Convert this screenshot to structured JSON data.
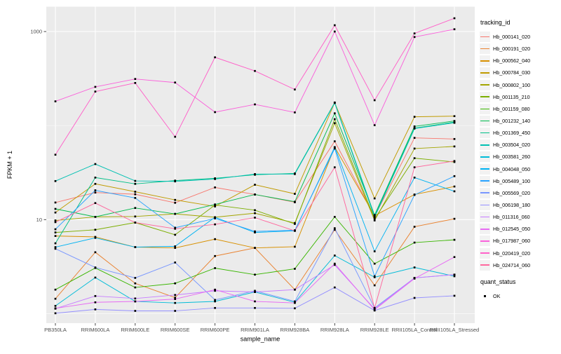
{
  "figure": {
    "y_axis": {
      "title": "FPKM + 1"
    },
    "x_axis": {
      "title": "sample_name"
    },
    "legend": {
      "tracking_title": "tracking_id",
      "quant_title": "quant_status",
      "quant_items": [
        {
          "label": "OK"
        }
      ]
    }
  },
  "chart_data": {
    "type": "line",
    "title": "",
    "xlabel": "sample_name",
    "ylabel": "FPKM + 1",
    "y_scale": "log10",
    "ylim": [
      0.88,
      1900
    ],
    "y_tick_labels": [
      {
        "label": "1000",
        "value": 1000
      },
      {
        "label": "10",
        "value": 10
      }
    ],
    "y_major_gridlines": [
      1000,
      10
    ],
    "y_minor_gridlines": [
      100,
      1
    ],
    "grid": true,
    "legend_position": "right",
    "panel_bg": "#ebebeb",
    "gridline_color": "#ffffff",
    "point_color": "#000000",
    "point_shape": "square",
    "categories": [
      "PB350LA",
      "RRIM600LA",
      "RRIM600LE",
      "RRIM600SE",
      "RRIM600PE",
      "RRIM901LA",
      "RRIM928BA",
      "RRIM928LA",
      "RRIM928LE",
      "RRII105LA_Control",
      "RRII105LA_Stressed"
    ],
    "series": [
      {
        "name": "Hb_000141_020",
        "color": "#F8766D",
        "values": [
          15.2,
          19.4,
          18.6,
          15.1,
          22,
          18.5,
          15.3,
          68,
          10.8,
          74,
          72
        ]
      },
      {
        "name": "Hb_000191_020",
        "color": "#EA8331",
        "values": [
          1.44,
          4.5,
          2.1,
          1.48,
          4.1,
          5.0,
          1.8,
          7.8,
          2.0,
          8.4,
          10.2
        ]
      },
      {
        "name": "Hb_000562_040",
        "color": "#D89000",
        "values": [
          6.7,
          6.55,
          5.1,
          5.0,
          6.2,
          5.0,
          5.15,
          59,
          11.0,
          18.5,
          22.5
        ]
      },
      {
        "name": "Hb_000784_030",
        "color": "#C09B00",
        "values": [
          11.9,
          24,
          19.8,
          16.2,
          13.8,
          23.5,
          18.8,
          175,
          16.8,
          124,
          126
        ]
      },
      {
        "name": "Hb_000802_100",
        "color": "#A3A500",
        "values": [
          9.8,
          10.7,
          10.8,
          11.5,
          10.6,
          11.7,
          9.2,
          106,
          9.8,
          57,
          60
        ]
      },
      {
        "name": "Hb_001135_210",
        "color": "#7CAE00",
        "values": [
          7.3,
          7.8,
          9.3,
          6.9,
          14.3,
          12.6,
          9.0,
          117,
          10.2,
          45,
          41
        ]
      },
      {
        "name": "Hb_001159_080",
        "color": "#39B600",
        "values": [
          1.8,
          3.06,
          1.9,
          2.1,
          3.05,
          2.6,
          3.0,
          10.7,
          3.4,
          5.7,
          6.1
        ]
      },
      {
        "name": "Hb_001232_140",
        "color": "#00BB4E",
        "values": [
          13.0,
          10.7,
          13.3,
          11.5,
          14.5,
          18.5,
          15.5,
          135,
          11.2,
          98,
          112
        ]
      },
      {
        "name": "Hb_001369_450",
        "color": "#00C087",
        "values": [
          5.6,
          28,
          24,
          26,
          27.5,
          30,
          31,
          176,
          11.0,
          94,
          109
        ]
      },
      {
        "name": "Hb_003504_020",
        "color": "#00C0B2",
        "values": [
          25.7,
          39,
          25.8,
          25.5,
          27,
          30.5,
          30.5,
          174,
          10.6,
          93,
          107
        ]
      },
      {
        "name": "Hb_003581_260",
        "color": "#00BCD8",
        "values": [
          1.21,
          2.42,
          1.35,
          1.3,
          1.35,
          1.7,
          1.32,
          4.15,
          2.44,
          3.1,
          2.5
        ]
      },
      {
        "name": "Hb_004048_050",
        "color": "#00B3F2",
        "values": [
          5.1,
          6.4,
          5.1,
          5.2,
          10.6,
          7.3,
          7.6,
          59,
          4.6,
          28,
          20
        ]
      },
      {
        "name": "Hb_005489_100",
        "color": "#29A3FF",
        "values": [
          7.9,
          20.5,
          17,
          8.2,
          10.3,
          7.5,
          7.7,
          57,
          2.5,
          18.3,
          29
        ]
      },
      {
        "name": "Hb_005569_020",
        "color": "#7997FF",
        "values": [
          4.9,
          3.1,
          2.4,
          3.5,
          1.4,
          1.75,
          1.35,
          8.1,
          1.15,
          2.4,
          2.6
        ]
      },
      {
        "name": "Hb_006198_180",
        "color": "#9590FF",
        "values": [
          1.01,
          1.11,
          1.07,
          1.07,
          1.15,
          1.15,
          1.14,
          1.9,
          1.08,
          1.47,
          1.55
        ]
      },
      {
        "name": "Hb_011316_060",
        "color": "#C77CFF",
        "values": [
          1.13,
          1.54,
          1.45,
          1.58,
          1.75,
          1.7,
          1.8,
          3.3,
          1.12,
          2.4,
          2.6
        ]
      },
      {
        "name": "Hb_012545_050",
        "color": "#E76BF3",
        "values": [
          1.14,
          1.32,
          1.35,
          1.43,
          1.8,
          1.35,
          1.3,
          3.4,
          1.1,
          2.36,
          4.0
        ]
      },
      {
        "name": "Hb_017987_060",
        "color": "#FA62DB",
        "values": [
          181,
          258,
          313,
          287,
          139,
          168,
          138,
          1000,
          101,
          875,
          1058
        ]
      },
      {
        "name": "Hb_020419_020",
        "color": "#FF61C9",
        "values": [
          49,
          230,
          284,
          76,
          532,
          381,
          242,
          1167,
          186,
          955,
          1385
        ]
      },
      {
        "name": "Hb_024714_060",
        "color": "#FF689E",
        "values": [
          9.4,
          15,
          9.3,
          8.0,
          8.9,
          10.5,
          7.6,
          36,
          1.15,
          36,
          42
        ]
      }
    ]
  }
}
